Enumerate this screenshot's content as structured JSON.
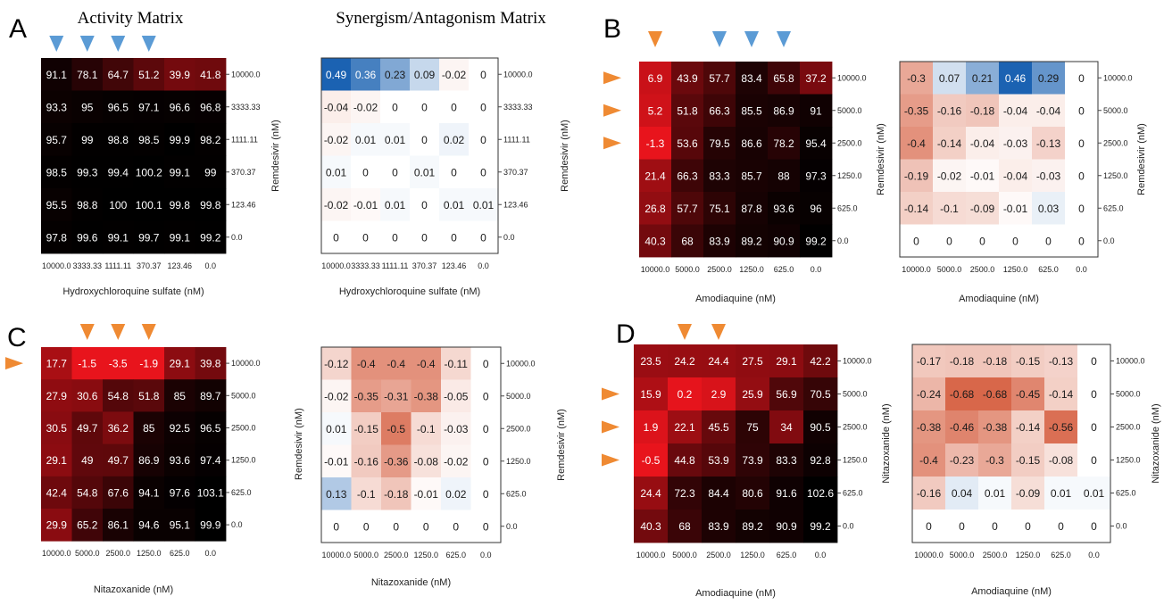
{
  "figure": {
    "headers": {
      "activity": "Activity Matrix",
      "synergy": "Synergism/Antagonism Matrix"
    },
    "colors": {
      "blue_marker": "#5b9bd5",
      "orange_marker": "#ef8a33",
      "activity_low": "#e8141c",
      "activity_high": "#000000",
      "synergy_negative": "#d8674a",
      "synergy_positive": "#1b62b2",
      "synergy_neutral": "#ffffff"
    }
  },
  "chart_data": [
    {
      "panel": "A",
      "type": "heatmap",
      "title": "Activity Matrix",
      "xlabel": "Hydroxychloroquine sulfate (nM)",
      "ylabel": "Remdesivir (nM)",
      "x_ticks": [
        "10000.0",
        "3333.33",
        "1111.11",
        "370.37",
        "123.46",
        "0.0"
      ],
      "y_ticks": [
        "10000.0",
        "3333.33",
        "1111.11",
        "370.37",
        "123.46",
        "0.0"
      ],
      "values": [
        [
          "91.1",
          "78.1",
          "64.7",
          "51.2",
          "39.9",
          "41.8"
        ],
        [
          "93.3",
          "95",
          "96.5",
          "97.1",
          "96.6",
          "96.8"
        ],
        [
          "95.7",
          "99",
          "98.8",
          "98.5",
          "99.9",
          "98.2"
        ],
        [
          "98.5",
          "99.3",
          "99.4",
          "100.2",
          "99.1",
          "99"
        ],
        [
          "95.5",
          "98.8",
          "100",
          "100.1",
          "99.8",
          "99.8"
        ],
        [
          "97.8",
          "99.6",
          "99.1",
          "99.7",
          "99.1",
          "99.2"
        ]
      ],
      "color_scale": "activity",
      "markers": {
        "color": "blue",
        "cols": [
          0,
          1,
          2,
          3
        ],
        "rows": []
      }
    },
    {
      "panel": "A",
      "type": "heatmap",
      "title": "Synergism/Antagonism Matrix",
      "xlabel": "Hydroxychloroquine sulfate (nM)",
      "ylabel": "Remdesivir (nM)",
      "x_ticks": [
        "10000.0",
        "3333.33",
        "1111.11",
        "370.37",
        "123.46",
        "0.0"
      ],
      "y_ticks": [
        "10000.0",
        "3333.33",
        "1111.11",
        "370.37",
        "123.46",
        "0.0"
      ],
      "values": [
        [
          "0.49",
          "0.36",
          "0.23",
          "0.09",
          "-0.02",
          "0"
        ],
        [
          "-0.04",
          "-0.02",
          "0",
          "0",
          "0",
          "0"
        ],
        [
          "-0.02",
          "0.01",
          "0.01",
          "0",
          "0.02",
          "0"
        ],
        [
          "0.01",
          "0",
          "0",
          "0.01",
          "0",
          "0"
        ],
        [
          "-0.02",
          "-0.01",
          "0.01",
          "0",
          "0.01",
          "0.01"
        ],
        [
          "0",
          "0",
          "0",
          "0",
          "0",
          "0"
        ]
      ],
      "color_scale": "synergy",
      "markers": null
    },
    {
      "panel": "B",
      "type": "heatmap",
      "xlabel": "Amodiaquine (nM)",
      "ylabel": "Remdesivir (nM)",
      "x_ticks": [
        "10000.0",
        "5000.0",
        "2500.0",
        "1250.0",
        "625.0",
        "0.0"
      ],
      "y_ticks": [
        "10000.0",
        "5000.0",
        "2500.0",
        "1250.0",
        "625.0",
        "0.0"
      ],
      "values": [
        [
          "6.9",
          "43.9",
          "57.7",
          "83.4",
          "65.8",
          "37.2"
        ],
        [
          "5.2",
          "51.8",
          "66.3",
          "85.5",
          "86.9",
          "91"
        ],
        [
          "-1.3",
          "53.6",
          "79.5",
          "86.6",
          "78.2",
          "95.4"
        ],
        [
          "21.4",
          "66.3",
          "83.3",
          "85.7",
          "88",
          "97.3"
        ],
        [
          "26.8",
          "57.7",
          "75.1",
          "87.8",
          "93.6",
          "96"
        ],
        [
          "40.3",
          "68",
          "83.9",
          "89.2",
          "90.9",
          "99.2"
        ]
      ],
      "color_scale": "activity",
      "markers": {
        "color": "orange",
        "cols": [
          0
        ],
        "rows": [
          0,
          1,
          2
        ],
        "blue_cols": [
          2,
          3,
          4
        ]
      }
    },
    {
      "panel": "B",
      "type": "heatmap",
      "xlabel": "Amodiaquine (nM)",
      "ylabel": "Remdesivir (nM)",
      "x_ticks": [
        "10000.0",
        "5000.0",
        "2500.0",
        "1250.0",
        "625.0",
        "0.0"
      ],
      "y_ticks": [
        "10000.0",
        "5000.0",
        "2500.0",
        "1250.0",
        "625.0",
        "0.0"
      ],
      "values": [
        [
          "-0.3",
          "0.07",
          "0.21",
          "0.46",
          "0.29",
          "0"
        ],
        [
          "-0.35",
          "-0.16",
          "-0.18",
          "-0.04",
          "-0.04",
          "0"
        ],
        [
          "-0.4",
          "-0.14",
          "-0.04",
          "-0.03",
          "-0.13",
          "0"
        ],
        [
          "-0.19",
          "-0.02",
          "-0.01",
          "-0.04",
          "-0.03",
          "0"
        ],
        [
          "-0.14",
          "-0.1",
          "-0.09",
          "-0.01",
          "0.03",
          "0"
        ],
        [
          "0",
          "0",
          "0",
          "0",
          "0",
          "0"
        ]
      ],
      "color_scale": "synergy",
      "markers": null
    },
    {
      "panel": "C",
      "type": "heatmap",
      "xlabel": "Nitazoxanide (nM)",
      "ylabel": "Remdesivir (nM)",
      "x_ticks": [
        "10000.0",
        "5000.0",
        "2500.0",
        "1250.0",
        "625.0",
        "0.0"
      ],
      "y_ticks": [
        "10000.0",
        "5000.0",
        "2500.0",
        "1250.0",
        "625.0",
        "0.0"
      ],
      "values": [
        [
          "17.7",
          "-1.5",
          "-3.5",
          "-1.9",
          "29.1",
          "39.8"
        ],
        [
          "27.9",
          "30.6",
          "54.8",
          "51.8",
          "85",
          "89.7"
        ],
        [
          "30.5",
          "49.7",
          "36.2",
          "85",
          "92.5",
          "96.5"
        ],
        [
          "29.1",
          "49",
          "49.7",
          "86.9",
          "93.6",
          "97.4"
        ],
        [
          "42.4",
          "54.8",
          "67.6",
          "94.1",
          "97.6",
          "103.1"
        ],
        [
          "29.9",
          "65.2",
          "86.1",
          "94.6",
          "95.1",
          "99.9"
        ]
      ],
      "color_scale": "activity",
      "markers": {
        "color": "orange",
        "cols": [
          1,
          2,
          3
        ],
        "rows": [
          0
        ]
      }
    },
    {
      "panel": "C",
      "type": "heatmap",
      "xlabel": "Nitazoxanide (nM)",
      "ylabel": "Remdesivir (nM)",
      "x_ticks": [
        "10000.0",
        "5000.0",
        "2500.0",
        "1250.0",
        "625.0",
        "0.0"
      ],
      "y_ticks": [
        "10000.0",
        "5000.0",
        "2500.0",
        "1250.0",
        "625.0",
        "0.0"
      ],
      "values": [
        [
          "-0.12",
          "-0.4",
          "-0.4",
          "-0.4",
          "-0.11",
          "0"
        ],
        [
          "-0.02",
          "-0.35",
          "-0.31",
          "-0.38",
          "-0.05",
          "0"
        ],
        [
          "0.01",
          "-0.15",
          "-0.5",
          "-0.1",
          "-0.03",
          "0"
        ],
        [
          "-0.01",
          "-0.16",
          "-0.36",
          "-0.08",
          "-0.02",
          "0"
        ],
        [
          "0.13",
          "-0.1",
          "-0.18",
          "-0.01",
          "0.02",
          "0"
        ],
        [
          "0",
          "0",
          "0",
          "0",
          "0",
          "0"
        ]
      ],
      "color_scale": "synergy",
      "markers": null
    },
    {
      "panel": "D",
      "type": "heatmap",
      "xlabel": "Amodiaquine (nM)",
      "ylabel": "Nitazoxanide (nM)",
      "x_ticks": [
        "10000.0",
        "5000.0",
        "2500.0",
        "1250.0",
        "625.0",
        "0.0"
      ],
      "y_ticks": [
        "10000.0",
        "5000.0",
        "2500.0",
        "1250.0",
        "625.0",
        "0.0"
      ],
      "values": [
        [
          "23.5",
          "24.2",
          "24.4",
          "27.5",
          "29.1",
          "42.2"
        ],
        [
          "15.9",
          "0.2",
          "2.9",
          "25.9",
          "56.9",
          "70.5"
        ],
        [
          "1.9",
          "22.1",
          "45.5",
          "75",
          "34",
          "90.5"
        ],
        [
          "-0.5",
          "44.8",
          "53.9",
          "73.9",
          "83.3",
          "92.8"
        ],
        [
          "24.4",
          "72.3",
          "84.4",
          "80.6",
          "91.6",
          "102.6"
        ],
        [
          "40.3",
          "68",
          "83.9",
          "89.2",
          "90.9",
          "99.2"
        ]
      ],
      "color_scale": "activity",
      "markers": {
        "color": "orange",
        "cols": [
          1,
          2
        ],
        "rows": [
          1,
          2,
          3
        ]
      }
    },
    {
      "panel": "D",
      "type": "heatmap",
      "xlabel": "Amodiaquine (nM)",
      "ylabel": "Nitazoxanide (nM)",
      "x_ticks": [
        "10000.0",
        "5000.0",
        "2500.0",
        "1250.0",
        "625.0",
        "0.0"
      ],
      "y_ticks": [
        "10000.0",
        "5000.0",
        "2500.0",
        "1250.0",
        "625.0",
        "0.0"
      ],
      "values": [
        [
          "-0.17",
          "-0.18",
          "-0.18",
          "-0.15",
          "-0.13",
          "0"
        ],
        [
          "-0.24",
          "-0.68",
          "-0.68",
          "-0.45",
          "-0.14",
          "0"
        ],
        [
          "-0.38",
          "-0.46",
          "-0.38",
          "-0.14",
          "-0.56",
          "0"
        ],
        [
          "-0.4",
          "-0.23",
          "-0.3",
          "-0.15",
          "-0.08",
          "0"
        ],
        [
          "-0.16",
          "0.04",
          "0.01",
          "-0.09",
          "0.01",
          "0.01"
        ],
        [
          "0",
          "0",
          "0",
          "0",
          "0",
          "0"
        ]
      ],
      "color_scale": "synergy",
      "markers": null
    }
  ]
}
